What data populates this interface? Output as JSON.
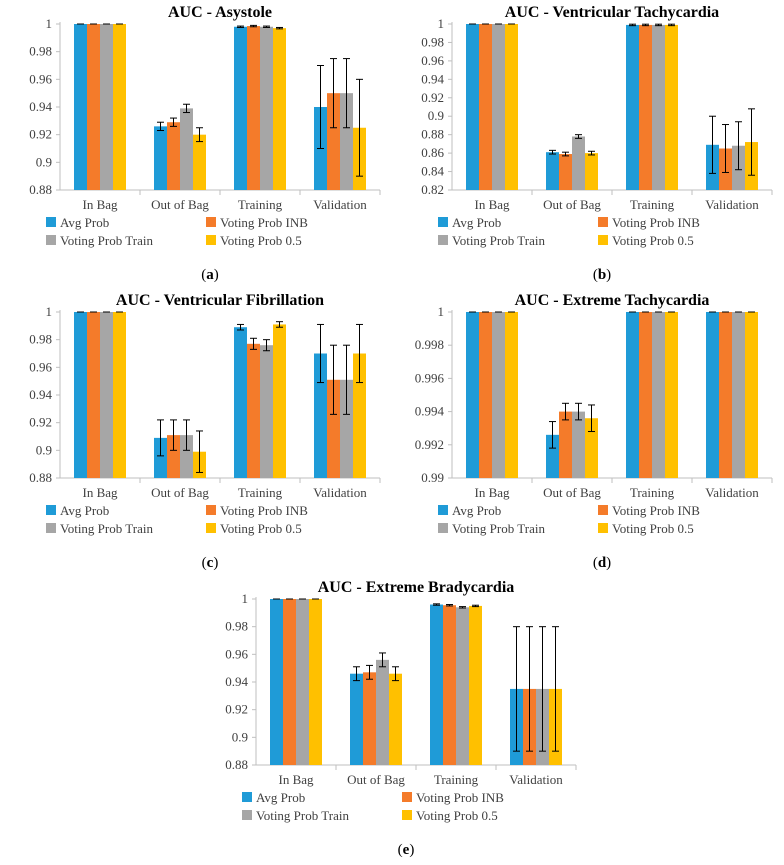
{
  "colors": {
    "Avg Prob": "#1f9bd7",
    "Voting Prob INB": "#f47b2a",
    "Voting Prob Train": "#a6a6a6",
    "Voting Prob 0.5": "#ffc000",
    "axis": "#bfbfbf",
    "text": "#404040"
  },
  "chart_data": [
    {
      "type": "bar",
      "id": "asystole",
      "panel": "a",
      "title": "AUC - Asystole",
      "categories": [
        "In Bag",
        "Out of Bag",
        "Training",
        "Validation"
      ],
      "ylim": [
        0.88,
        1
      ],
      "yticks": [
        "0.88",
        "0.9",
        "0.92",
        "0.94",
        "0.96",
        "0.98",
        "1"
      ],
      "series": [
        {
          "name": "Avg Prob",
          "values": [
            1,
            0.926,
            0.998,
            0.94
          ],
          "errors": [
            0,
            0.003,
            0.0005,
            0.03
          ]
        },
        {
          "name": "Voting Prob INB",
          "values": [
            1,
            0.929,
            0.9985,
            0.95
          ],
          "errors": [
            0,
            0.003,
            0.0005,
            0.025
          ]
        },
        {
          "name": "Voting Prob Train",
          "values": [
            1,
            0.939,
            0.998,
            0.95
          ],
          "errors": [
            0,
            0.003,
            0.0005,
            0.025
          ]
        },
        {
          "name": "Voting Prob 0.5",
          "values": [
            1,
            0.92,
            0.997,
            0.925
          ],
          "errors": [
            0,
            0.005,
            0.0005,
            0.035
          ]
        }
      ]
    },
    {
      "type": "bar",
      "id": "vtach",
      "panel": "b",
      "title": "AUC - Ventricular Tachycardia",
      "categories": [
        "In Bag",
        "Out of Bag",
        "Training",
        "Validation"
      ],
      "ylim": [
        0.82,
        1
      ],
      "yticks": [
        "0.82",
        "0.84",
        "0.86",
        "0.88",
        "0.9",
        "0.92",
        "0.94",
        "0.96",
        "0.98",
        "1"
      ],
      "series": [
        {
          "name": "Avg Prob",
          "values": [
            1,
            0.861,
            0.999,
            0.869
          ],
          "errors": [
            0,
            0.002,
            0.0008,
            0.031
          ]
        },
        {
          "name": "Voting Prob INB",
          "values": [
            1,
            0.859,
            0.999,
            0.865
          ],
          "errors": [
            0,
            0.002,
            0.0008,
            0.026
          ]
        },
        {
          "name": "Voting Prob Train",
          "values": [
            1,
            0.878,
            0.999,
            0.868
          ],
          "errors": [
            0,
            0.002,
            0.0008,
            0.026
          ]
        },
        {
          "name": "Voting Prob 0.5",
          "values": [
            1,
            0.86,
            0.999,
            0.872
          ],
          "errors": [
            0,
            0.002,
            0.0008,
            0.036
          ]
        }
      ]
    },
    {
      "type": "bar",
      "id": "vfib",
      "panel": "c",
      "title": "AUC - Ventricular Fibrillation",
      "categories": [
        "In Bag",
        "Out of Bag",
        "Training",
        "Validation"
      ],
      "ylim": [
        0.88,
        1
      ],
      "yticks": [
        "0.88",
        "0.9",
        "0.92",
        "0.94",
        "0.96",
        "0.98",
        "1"
      ],
      "series": [
        {
          "name": "Avg Prob",
          "values": [
            1,
            0.909,
            0.989,
            0.97
          ],
          "errors": [
            0,
            0.013,
            0.002,
            0.021
          ]
        },
        {
          "name": "Voting Prob INB",
          "values": [
            1,
            0.911,
            0.977,
            0.951
          ],
          "errors": [
            0,
            0.011,
            0.004,
            0.025
          ]
        },
        {
          "name": "Voting Prob Train",
          "values": [
            1,
            0.911,
            0.976,
            0.951
          ],
          "errors": [
            0,
            0.011,
            0.004,
            0.025
          ]
        },
        {
          "name": "Voting Prob 0.5",
          "values": [
            1,
            0.899,
            0.991,
            0.97
          ],
          "errors": [
            0,
            0.015,
            0.002,
            0.021
          ]
        }
      ]
    },
    {
      "type": "bar",
      "id": "etach",
      "panel": "d",
      "title": "AUC - Extreme Tachycardia",
      "categories": [
        "In Bag",
        "Out of Bag",
        "Training",
        "Validation"
      ],
      "ylim": [
        0.99,
        1
      ],
      "yticks": [
        "0.99",
        "0.992",
        "0.994",
        "0.996",
        "0.998",
        "1"
      ],
      "series": [
        {
          "name": "Avg Prob",
          "values": [
            1,
            0.9926,
            1,
            1
          ],
          "errors": [
            0,
            0.0008,
            0,
            0
          ]
        },
        {
          "name": "Voting Prob INB",
          "values": [
            1,
            0.994,
            1,
            1
          ],
          "errors": [
            0,
            0.0005,
            0,
            0
          ]
        },
        {
          "name": "Voting Prob Train",
          "values": [
            1,
            0.994,
            1,
            1
          ],
          "errors": [
            0,
            0.0005,
            0,
            0
          ]
        },
        {
          "name": "Voting Prob 0.5",
          "values": [
            1,
            0.9936,
            1,
            1
          ],
          "errors": [
            0,
            0.0008,
            0,
            0
          ]
        }
      ]
    },
    {
      "type": "bar",
      "id": "ebrady",
      "panel": "e",
      "title": "AUC - Extreme Bradycardia",
      "categories": [
        "In Bag",
        "Out of Bag",
        "Training",
        "Validation"
      ],
      "ylim": [
        0.88,
        1
      ],
      "yticks": [
        "0.88",
        "0.9",
        "0.92",
        "0.94",
        "0.96",
        "0.98",
        "1"
      ],
      "series": [
        {
          "name": "Avg Prob",
          "values": [
            1,
            0.946,
            0.996,
            0.935
          ],
          "errors": [
            0,
            0.005,
            0.0005,
            0.045
          ]
        },
        {
          "name": "Voting Prob INB",
          "values": [
            1,
            0.947,
            0.9955,
            0.935
          ],
          "errors": [
            0,
            0.005,
            0.0005,
            0.045
          ]
        },
        {
          "name": "Voting Prob Train",
          "values": [
            1,
            0.956,
            0.994,
            0.935
          ],
          "errors": [
            0,
            0.005,
            0.0005,
            0.045
          ]
        },
        {
          "name": "Voting Prob 0.5",
          "values": [
            1,
            0.946,
            0.995,
            0.935
          ],
          "errors": [
            0,
            0.005,
            0.0005,
            0.045
          ]
        }
      ]
    }
  ]
}
